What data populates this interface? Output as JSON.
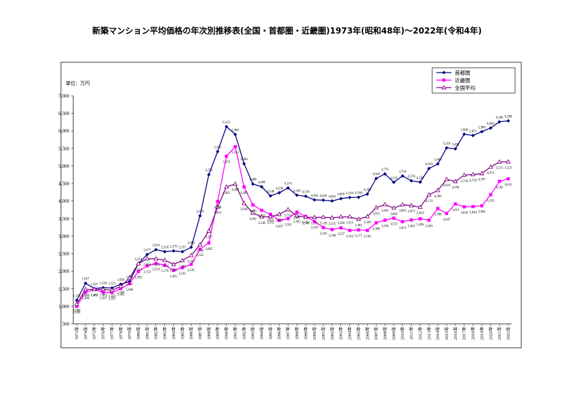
{
  "title": "新築マンション平均価格の年次別推移表(全国・首都圏・近畿圏)1973年(昭和48年)〜2022年(令和4年)",
  "unit_label": "単位：万円",
  "chart_data": {
    "type": "line",
    "title": "新築マンション平均価格の年次別推移表(全国・首都圏・近畿圏)1973年(昭和48年)〜2022年(令和4年)",
    "ylabel": "単位：万円",
    "ylim": [
      500,
      7000
    ],
    "yticks": [
      "500",
      "1,000",
      "1,500",
      "2,000",
      "2,500",
      "3,000",
      "3,500",
      "4,000",
      "4,500",
      "5,000",
      "5,500",
      "6,000",
      "6,500",
      "7,000"
    ],
    "legend_position": "top-right",
    "grid": false,
    "x": [
      "1973年",
      "1974年",
      "1975年",
      "1976年",
      "1977年",
      "1978年",
      "1979年",
      "1980年",
      "1981年",
      "1982年",
      "1983年",
      "1984年",
      "1985年",
      "1986年",
      "1987年",
      "1988年",
      "1989年",
      "1990年",
      "1991年",
      "1992年",
      "1993年",
      "1994年",
      "1995年",
      "1996年",
      "1997年",
      "1998年",
      "1999年",
      "2000年",
      "2001年",
      "2002年",
      "2003年",
      "2004年",
      "2005年",
      "2006年",
      "2007年",
      "2008年",
      "2009年",
      "2010年",
      "2011年",
      "2012年",
      "2013年",
      "2014年",
      "2015年",
      "2016年",
      "2017年",
      "2018年",
      "2019年",
      "2020年",
      "2021年",
      "2022年"
    ],
    "series": [
      {
        "name": "首都圏",
        "color": "#000080",
        "marker": "diamond",
        "values": [
          1171,
          1657,
          1507,
          1530,
          1523,
          1630,
          1711,
          2214,
          2477,
          2616,
          2558,
          2579,
          2557,
          2683,
          3579,
          4753,
          5411,
          6123,
          5900,
          5066,
          4488,
          4409,
          4148,
          4238,
          4374,
          4168,
          4138,
          4034,
          4026,
          4003,
          4069,
          4104,
          4108,
          4200,
          4644,
          4775,
          4535,
          4716,
          4578,
          4540,
          4929,
          5060,
          5518,
          5490,
          5908,
          5871,
          5980,
          6083,
          6260,
          6288
        ],
        "labels": [
          "1,171",
          "1,657",
          "1,507",
          "1,530",
          "1,523",
          "1,630",
          "1,711",
          "2,214",
          "2,477",
          "2,616",
          "2,558",
          "2,579",
          "2,557",
          "2,683",
          "3,579",
          "4,753",
          "5,411",
          "6,123",
          "5,900",
          "5,066",
          "4,488",
          "4,409",
          "4,148",
          "4,238",
          "4,374",
          "4,168",
          "4,138",
          "4,034",
          "4,026",
          "4,003",
          "4,069",
          "4,104",
          "4,108",
          "4,200",
          "4,644",
          "4,775",
          "4,535",
          "4,716",
          "4,578",
          "4,540",
          "4,929",
          "5,060",
          "5,518",
          "5,490",
          "5,908",
          "5,871",
          "5,980",
          "6,083",
          "6,260",
          "6,288"
        ]
      },
      {
        "name": "近畿圏",
        "color": "#ff00ff",
        "marker": "square",
        "values": [
          1000,
          1400,
          1482,
          1397,
          1392,
          1505,
          1646,
          1992,
          2152,
          2224,
          2176,
          2025,
          2101,
          2195,
          2625,
          2805,
          3990,
          5279,
          5552,
          4403,
          3890,
          3737,
          3622,
          3447,
          3501,
          3687,
          3562,
          3419,
          3245,
          3188,
          3237,
          3163,
          3177,
          3164,
          3380,
          3456,
          3513,
          3413,
          3462,
          3496,
          3456,
          3788,
          3647,
          3919,
          3836,
          3844,
          3866,
          4181,
          4562,
          4635
        ],
        "labels": [
          "1,000",
          "1,400",
          "1,482",
          "1,397",
          "1,392",
          "1,505",
          "1,646",
          "1,992",
          "2,152",
          "2,224",
          "2,176",
          "2,025",
          "2,101",
          "2,195",
          "2,625",
          "2,805",
          "3,990",
          "5,279",
          "5,552",
          "4,403",
          "3,890",
          "3,737",
          "3,622",
          "3,447",
          "3,501",
          "3,687",
          "3,562",
          "3,419",
          "3,245",
          "3,188",
          "3,237",
          "3,163",
          "3,177",
          "3,164",
          "3,380",
          "3,456",
          "3,513",
          "3,413",
          "3,462",
          "3,496",
          "3,456",
          "3,788",
          "3,647",
          "3,919",
          "3,836",
          "3,844",
          "3,866",
          "4,181",
          "4,562",
          "4,635"
        ]
      },
      {
        "name": "全国平均",
        "color": "#800080",
        "marker": "triangle",
        "values": [
          1060,
          1480,
          1481,
          1483,
          1458,
          1568,
          1812,
          2214,
          2358,
          2354,
          2314,
          2196,
          2305,
          2451,
          2756,
          3147,
          3833,
          4403,
          4488,
          3936,
          3662,
          3548,
          3555,
          3623,
          3756,
          3583,
          3540,
          3535,
          3539,
          3525,
          3548,
          3551,
          3481,
          3560,
          3813,
          3901,
          3802,
          3895,
          3873,
          3824,
          4174,
          4306,
          4618,
          4560,
          4739,
          4759,
          4787,
          4971,
          5115,
          5121
        ],
        "labels": [
          "1,060",
          "1,480",
          "1,481",
          "1,483",
          "1,458",
          "1,568",
          "1,812",
          "2,214",
          "2,358",
          "2,354",
          "2,314",
          "2,196",
          "2,305",
          "2,451",
          "2,756",
          "3,147",
          "3,833",
          "4,403",
          "4,488",
          "3,936",
          "3,662",
          "3,548",
          "3,555",
          "3,623",
          "3,756",
          "3,583",
          "3,540",
          "3,535",
          "3,539",
          "3,525",
          "3,548",
          "3,551",
          "3,481",
          "3,560",
          "3,813",
          "3,901",
          "3,802",
          "3,895",
          "3,873",
          "3,824",
          "4,174",
          "4,306",
          "4,618",
          "4,560",
          "4,739",
          "4,759",
          "4,787",
          "4,971",
          "5,115",
          "5,121"
        ]
      }
    ]
  }
}
